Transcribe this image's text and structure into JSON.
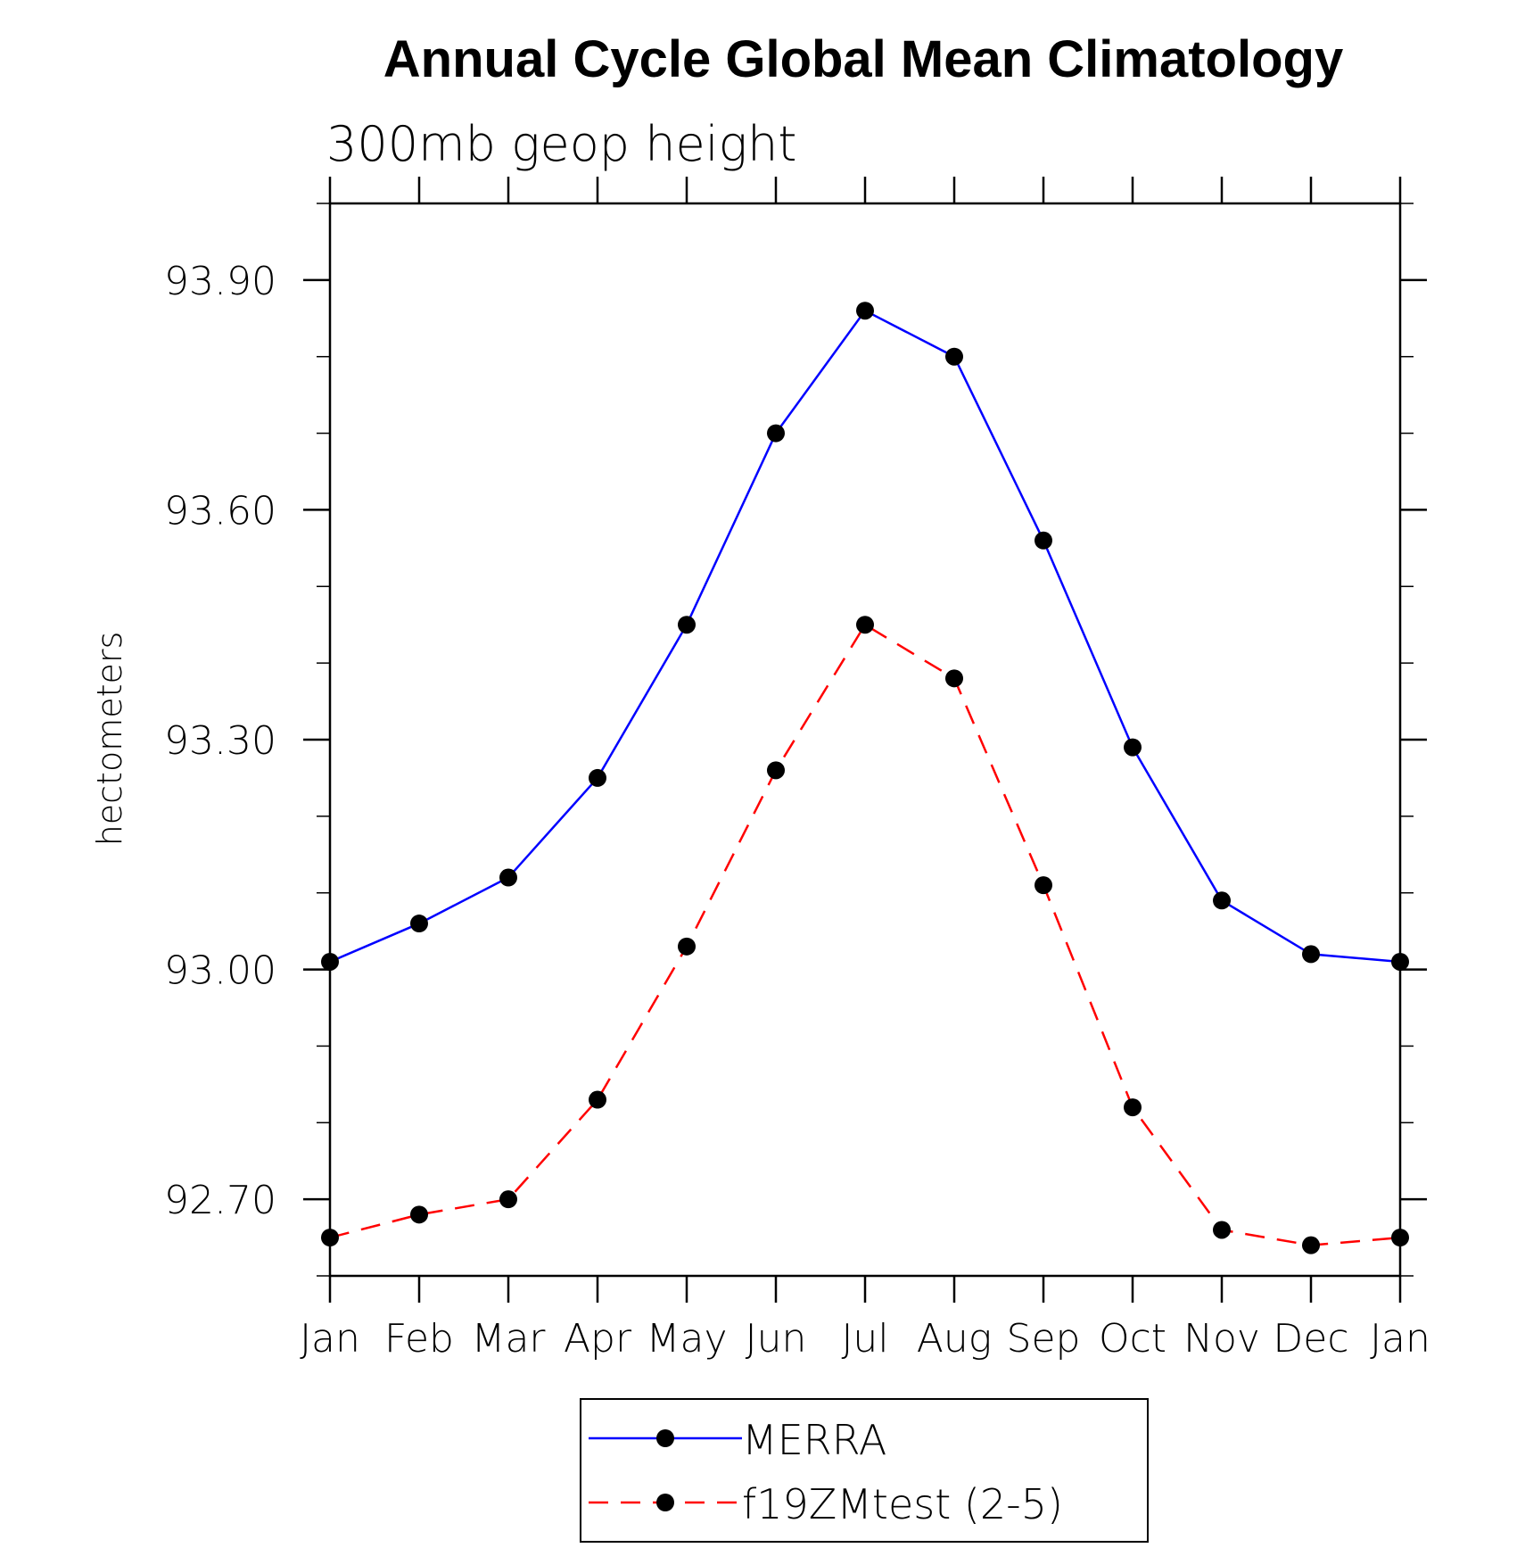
{
  "chart_data": {
    "type": "line",
    "title": "Annual Cycle Global Mean Climatology",
    "subtitle": "300mb geop height",
    "xlabel": "",
    "ylabel": "hectometers",
    "categories": [
      "Jan",
      "Feb",
      "Mar",
      "Apr",
      "May",
      "Jun",
      "Jul",
      "Aug",
      "Sep",
      "Oct",
      "Nov",
      "Dec",
      "Jan"
    ],
    "ylim": [
      92.6,
      94.0
    ],
    "yticks_major": [
      92.7,
      93.0,
      93.3,
      93.6,
      93.9
    ],
    "ytick_labels": [
      "92.70",
      "93.00",
      "93.30",
      "93.60",
      "93.90"
    ],
    "series": [
      {
        "name": "MERRA",
        "color": "#0000ff",
        "dash": "solid",
        "values": [
          93.01,
          93.06,
          93.12,
          93.25,
          93.45,
          93.7,
          93.86,
          93.8,
          93.56,
          93.29,
          93.09,
          93.02,
          93.01
        ]
      },
      {
        "name": "f19ZMtest (2-5)",
        "color": "#ff0000",
        "dash": "dashed",
        "values": [
          92.65,
          92.68,
          92.7,
          92.83,
          93.03,
          93.26,
          93.45,
          93.38,
          93.11,
          92.82,
          92.66,
          92.64,
          92.65
        ]
      }
    ],
    "legend_position": "bottom-center",
    "grid": false
  }
}
